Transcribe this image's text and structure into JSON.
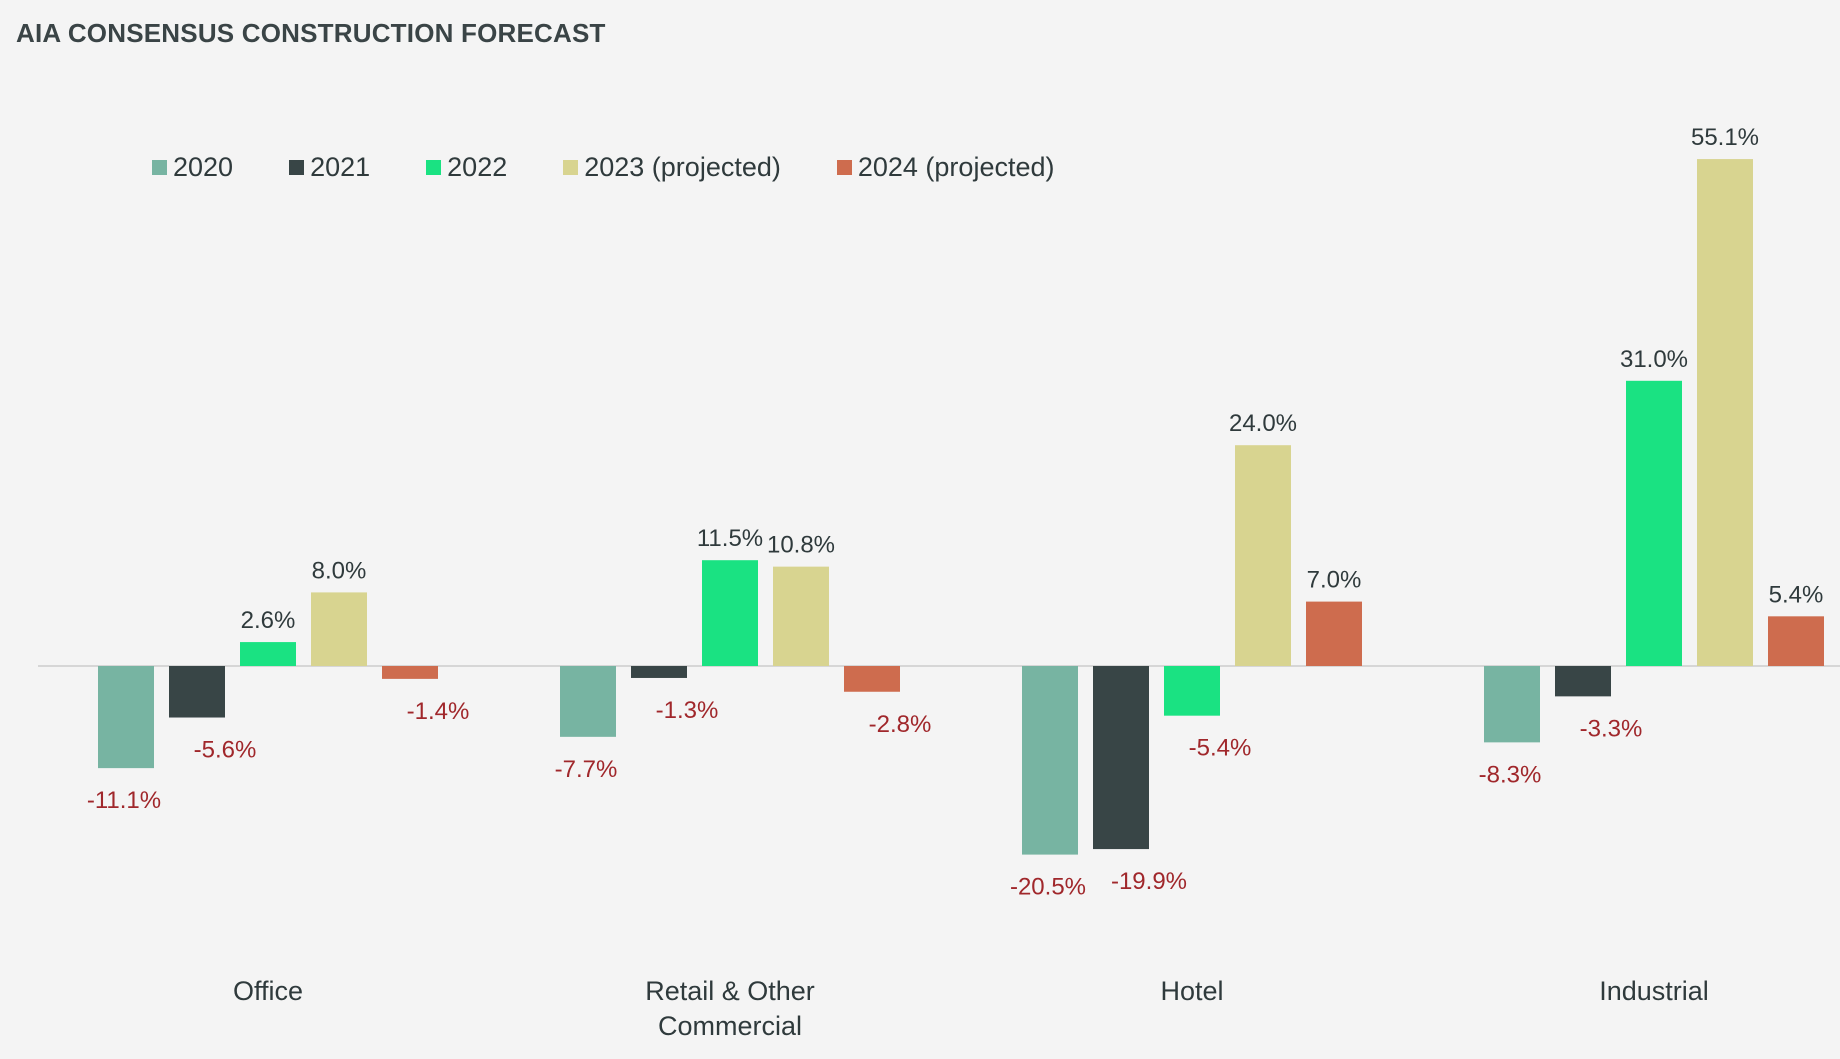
{
  "chart_data": {
    "type": "bar",
    "title": "AIA CONSENSUS CONSTRUCTION FORECAST",
    "categories": [
      [
        "Office"
      ],
      [
        "Retail & Other",
        "Commercial"
      ],
      [
        "Hotel"
      ],
      [
        "Industrial"
      ]
    ],
    "series": [
      {
        "name": "2020",
        "color": "#77b4a2",
        "values": [
          -11.1,
          -7.7,
          -20.5,
          -8.3
        ],
        "labels": [
          "-11.1%",
          "-7.7%",
          "-20.5%",
          "-8.3%"
        ]
      },
      {
        "name": "2021",
        "color": "#384546",
        "values": [
          -5.6,
          -1.3,
          -19.9,
          -3.3
        ],
        "labels": [
          "-5.6%",
          "-1.3%",
          "-19.9%",
          "-3.3%"
        ]
      },
      {
        "name": "2022",
        "color": "#1ae282",
        "values": [
          2.6,
          11.5,
          -5.4,
          31.0
        ],
        "labels": [
          "2.6%",
          "11.5%",
          "-5.4%",
          "31.0%"
        ]
      },
      {
        "name": "2023 (projected)",
        "color": "#d8d490",
        "values": [
          8.0,
          10.8,
          24.0,
          55.1
        ],
        "labels": [
          "8.0%",
          "10.8%",
          "24.0%",
          "55.1%"
        ]
      },
      {
        "name": "2024 (projected)",
        "color": "#ce6c4e",
        "values": [
          -1.4,
          -2.8,
          7.0,
          5.4
        ],
        "labels": [
          "-1.4%",
          "-2.8%",
          "7.0%",
          "5.4%"
        ]
      }
    ],
    "ylim": [
      -25,
      60
    ],
    "grid": false,
    "legend": "top",
    "xlabel": "",
    "ylabel": "",
    "colors": {
      "positive_label": "#2f3a3c",
      "negative_label": "#a0272b",
      "baseline": "#d6d6d6"
    }
  }
}
